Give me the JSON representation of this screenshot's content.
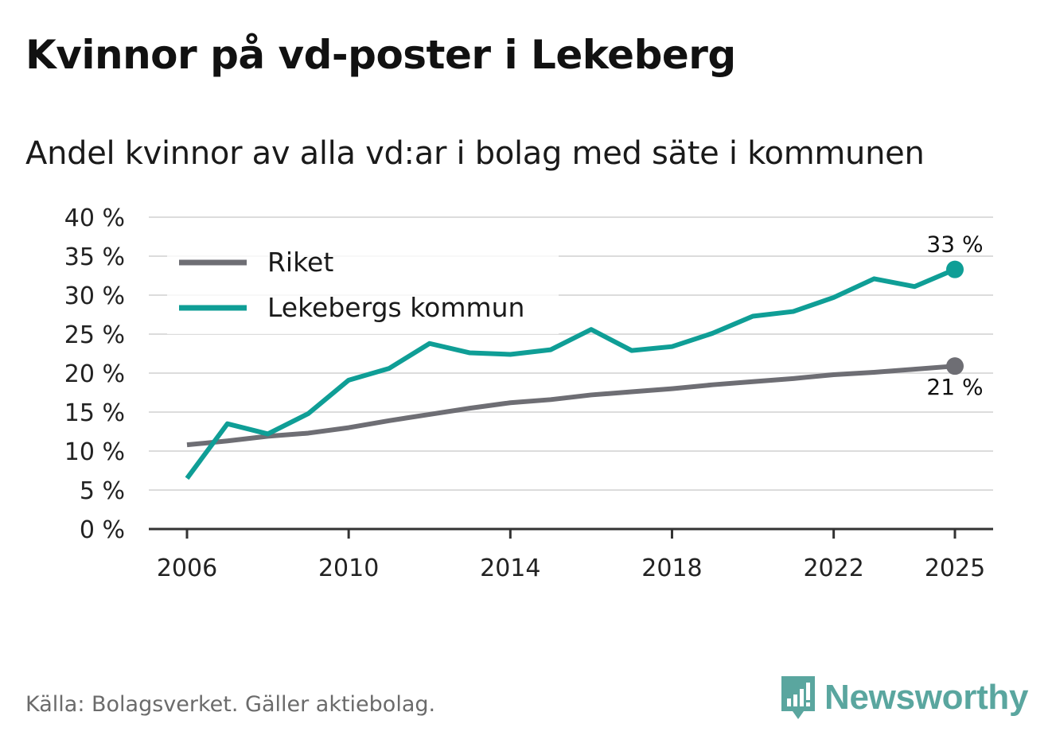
{
  "title": "Kvinnor på vd-poster i Lekeberg",
  "subtitle": "Andel kvinnor av alla vd:ar i bolag med säte i kommunen",
  "source": "Källa: Bolagsverket. Gäller aktiebolag.",
  "brand": "Newsworthy",
  "colors": {
    "riket": "#6e6e74",
    "kommun": "#0f9e96",
    "grid": "#dcdcdc",
    "axis": "#333333",
    "brand": "#5aa69f"
  },
  "chart_data": {
    "type": "line",
    "title": "Kvinnor på vd-poster i Lekeberg",
    "subtitle": "Andel kvinnor av alla vd:ar i bolag med säte i kommunen",
    "xlabel": "",
    "ylabel": "",
    "x": [
      2006,
      2007,
      2008,
      2009,
      2010,
      2011,
      2012,
      2013,
      2014,
      2015,
      2016,
      2017,
      2018,
      2019,
      2020,
      2021,
      2022,
      2023,
      2024,
      2025
    ],
    "xticks": [
      2006,
      2010,
      2014,
      2018,
      2022,
      2025
    ],
    "xtick_labels": [
      "2006",
      "2010",
      "2014",
      "2018",
      "2022",
      "2025"
    ],
    "xlim": [
      2006,
      2025
    ],
    "ylim": [
      0,
      40
    ],
    "yticks": [
      0,
      5,
      10,
      15,
      20,
      25,
      30,
      35,
      40
    ],
    "ytick_labels": [
      "0 %",
      "5 %",
      "10 %",
      "15 %",
      "20 %",
      "25 %",
      "30 %",
      "35 %",
      "40 %"
    ],
    "grid": true,
    "legend_position": "top-left",
    "series": [
      {
        "name": "Riket",
        "color": "#6e6e74",
        "values": [
          10.8,
          11.3,
          11.9,
          12.3,
          13.0,
          13.9,
          14.7,
          15.5,
          16.2,
          16.6,
          17.2,
          17.6,
          18.0,
          18.5,
          18.9,
          19.3,
          19.8,
          20.1,
          20.5,
          20.9
        ],
        "end_label": "21 %"
      },
      {
        "name": "Lekebergs kommun",
        "color": "#0f9e96",
        "values": [
          6.5,
          13.5,
          12.2,
          14.8,
          19.1,
          20.6,
          23.8,
          22.6,
          22.4,
          23.0,
          25.6,
          22.9,
          23.4,
          25.1,
          27.3,
          27.9,
          29.7,
          32.1,
          31.1,
          33.3
        ],
        "end_label": "33 %"
      }
    ]
  }
}
